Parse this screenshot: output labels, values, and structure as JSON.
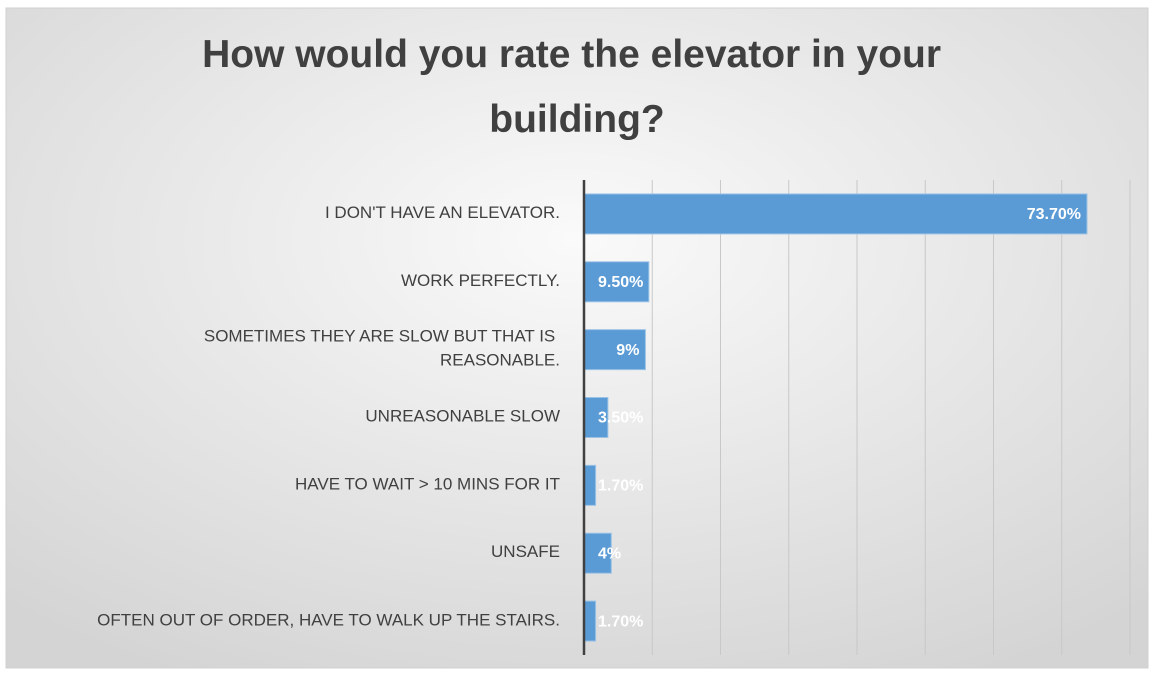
{
  "chart_data": {
    "type": "barh",
    "title": "How would you rate the elevator in your building?",
    "categories": [
      "I DON'T HAVE AN ELEVATOR.",
      "WORK PERFECTLY.",
      "SOMETIMES THEY ARE SLOW BUT THAT IS REASONABLE.",
      "UNREASONABLE SLOW",
      "HAVE TO WAIT > 10 MINS FOR IT",
      "UNSAFE",
      "OFTEN OUT OF ORDER, HAVE TO WALK UP THE STAIRS."
    ],
    "values": [
      73.7,
      9.5,
      9,
      3.5,
      1.7,
      4,
      1.7
    ],
    "value_labels": [
      "73.70%",
      "9.50%",
      "9%",
      "3.50%",
      "1.70%",
      "4%",
      "1.70%"
    ],
    "color": "#5b9bd5",
    "xlim": [
      0,
      80
    ],
    "xticks": [
      0,
      10,
      20,
      30,
      40,
      50,
      60,
      70,
      80
    ],
    "grid": true
  }
}
